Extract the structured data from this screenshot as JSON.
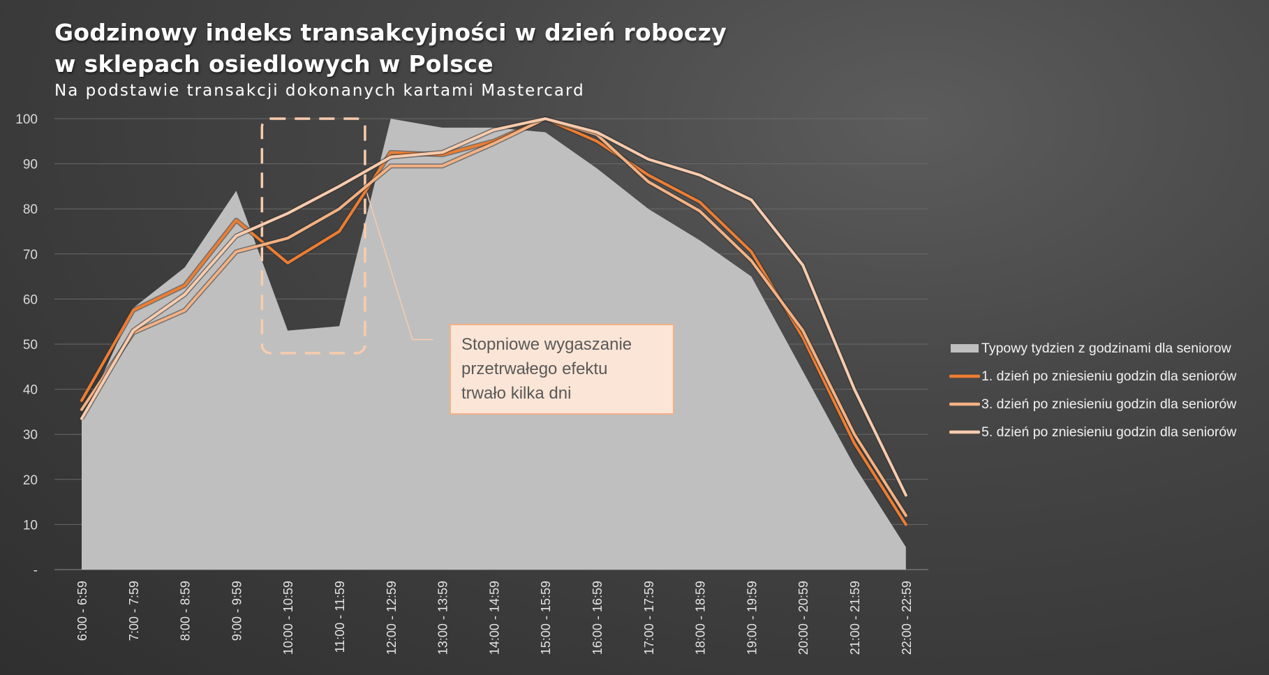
{
  "chart_data": {
    "type": "area+line",
    "title_lines": [
      "Godzinowy indeks transakcyjności w dzień roboczy",
      "w sklepach osiedlowych w Polsce"
    ],
    "subtitle": "Na podstawie transakcji dokonanych kartami Mastercard",
    "categories": [
      "6:00 - 6:59",
      "7:00 - 7:59",
      "8:00 - 8:59",
      "9:00 - 9:59",
      "10:00 - 10:59",
      "11:00 - 11:59",
      "12:00 - 12:59",
      "13:00 - 13:59",
      "14:00 - 14:59",
      "15:00 - 15:59",
      "16:00 - 16:59",
      "17:00 - 17:59",
      "18:00 - 18:59",
      "19:00 - 19:59",
      "20:00 - 20:59",
      "21:00 - 21:59",
      "22:00 - 22:59"
    ],
    "y_tick_labels": [
      "-",
      "10",
      "20",
      "30",
      "40",
      "50",
      "60",
      "70",
      "80",
      "90",
      "100"
    ],
    "ylim": [
      0,
      100
    ],
    "grid": true,
    "legend_position": "right",
    "series": [
      {
        "name": "Typowy tydzien z godzinami dla seniorow",
        "type": "area",
        "color": "#bfbfbf",
        "values": [
          33,
          58,
          67,
          84,
          53,
          54,
          100,
          98,
          98,
          97,
          89,
          80,
          73,
          65,
          44,
          23,
          5
        ]
      },
      {
        "name": "1. dzień po zniesieniu godzin dla seniorów",
        "type": "line",
        "color": "#ed7d31",
        "values": [
          37.5,
          57.5,
          63,
          77.5,
          68,
          75,
          92.5,
          92,
          95,
          100,
          95,
          87.5,
          81.5,
          70.5,
          51.5,
          28,
          10
        ]
      },
      {
        "name": "3. dzień po zniesieniu godzin dla seniorów",
        "type": "line",
        "color": "#f4b183",
        "values": [
          35.5,
          52.5,
          57.5,
          70.5,
          73.5,
          80,
          89.5,
          89.5,
          94.5,
          100,
          96.5,
          86,
          79.5,
          68.5,
          53,
          30,
          12
        ]
      },
      {
        "name": "5. dzień po zniesieniu godzin dla seniorów",
        "type": "line",
        "color": "#f8cbad",
        "values": [
          33.5,
          53,
          61,
          74,
          79,
          85,
          91.5,
          92.5,
          97.5,
          100,
          97,
          91,
          87.5,
          82,
          67.5,
          40,
          16.5
        ]
      }
    ],
    "highlight_box": {
      "x_range": [
        "10:00 - 10:59",
        "11:00 - 11:59"
      ],
      "y_range": [
        48,
        100
      ]
    },
    "annotation": {
      "lines": [
        "Stopniowe wygaszanie",
        "przetrwałego efektu",
        "trwało kilka dni"
      ]
    },
    "colors": {
      "highlight": "#f8cbad",
      "annotation_bg": "#fbe5d6",
      "annotation_border": "#f4b183"
    }
  }
}
